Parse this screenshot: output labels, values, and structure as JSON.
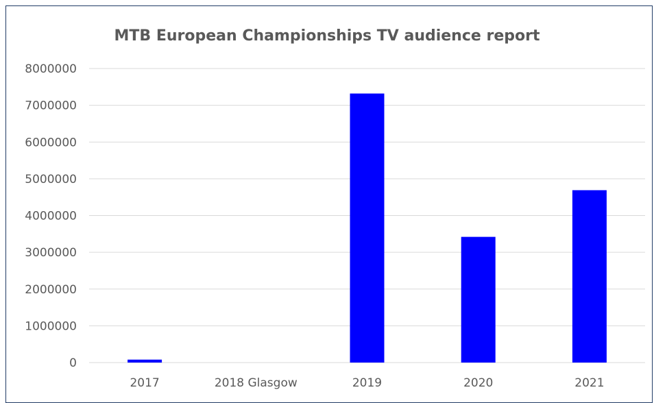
{
  "chart_data": {
    "type": "bar",
    "title": "MTB European Championships TV audience report",
    "xlabel": "",
    "ylabel": "",
    "categories": [
      "2017",
      "2018 Glasgow",
      "2019",
      "2020",
      "2021"
    ],
    "values": [
      80000,
      0,
      7320000,
      3420000,
      4690000
    ],
    "ylim": [
      0,
      8000000
    ],
    "yticks": [
      0,
      1000000,
      2000000,
      3000000,
      4000000,
      5000000,
      6000000,
      7000000,
      8000000
    ],
    "grid": true,
    "legend": "none",
    "bar_color": "#0000ff",
    "grid_color": "#d9d9d9",
    "text_color": "#595959"
  }
}
